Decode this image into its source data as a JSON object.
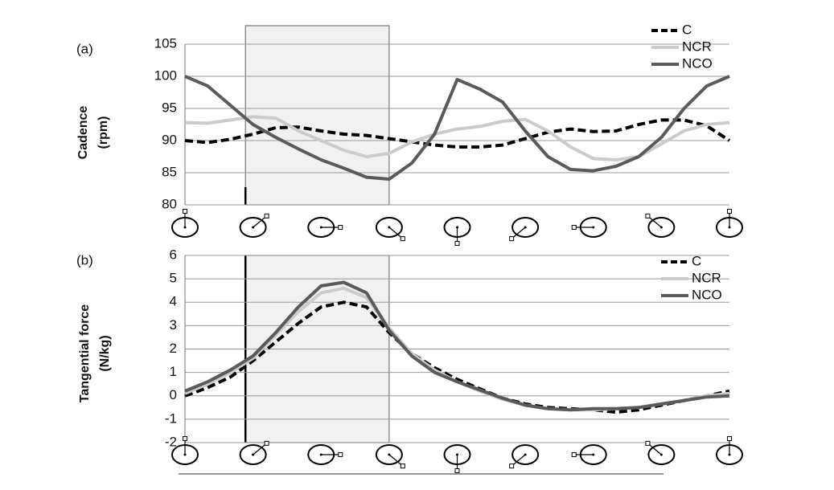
{
  "chart_data": [
    {
      "type": "line",
      "panel_label": "(a)",
      "y_label": [
        "Cadence",
        "(rpm)"
      ],
      "x": [
        0,
        15,
        30,
        45,
        60,
        75,
        90,
        105,
        120,
        135,
        150,
        165,
        180,
        195,
        210,
        225,
        240,
        255,
        270,
        285,
        300,
        315,
        330,
        345,
        360
      ],
      "xlim": [
        0,
        360
      ],
      "ylim": [
        80,
        105
      ],
      "yticks": [
        80,
        85,
        90,
        95,
        100,
        105
      ],
      "grid": true,
      "shaded_region": [
        40,
        135
      ],
      "region_edge": "short",
      "legend": "upper right",
      "series": [
        {
          "name": "C",
          "color": "#000000",
          "dash": true,
          "values": [
            90,
            89.7,
            90.2,
            91,
            92,
            92.1,
            91.5,
            91,
            90.8,
            90.3,
            89.8,
            89.3,
            89,
            89,
            89.3,
            90.3,
            91.3,
            91.8,
            91.4,
            91.5,
            92.5,
            93.2,
            93.2,
            92.3,
            90
          ]
        },
        {
          "name": "NCR",
          "color": "#cbcbcb",
          "dash": false,
          "values": [
            92.8,
            92.7,
            93.2,
            93.7,
            93.5,
            91.5,
            90,
            88.5,
            87.5,
            88,
            89.8,
            91,
            91.8,
            92.2,
            93,
            93.3,
            91.5,
            89,
            87.2,
            87,
            87.5,
            89.5,
            91.5,
            92.5,
            92.8
          ]
        },
        {
          "name": "NCO",
          "color": "#5a5a5a",
          "dash": false,
          "values": [
            100,
            98.5,
            95.5,
            92.5,
            90.5,
            88.7,
            87,
            85.7,
            84.3,
            84,
            86.5,
            91,
            99.5,
            98,
            96,
            91.5,
            87.5,
            85.5,
            85.3,
            86,
            87.5,
            90.5,
            95,
            98.5,
            100
          ]
        }
      ]
    },
    {
      "type": "line",
      "panel_label": "(b)",
      "y_label": [
        "Tangential force",
        "(N/kg)"
      ],
      "x": [
        0,
        15,
        30,
        45,
        60,
        75,
        90,
        105,
        120,
        135,
        150,
        165,
        180,
        195,
        210,
        225,
        240,
        255,
        270,
        285,
        300,
        315,
        330,
        345,
        360
      ],
      "xlim": [
        0,
        360
      ],
      "ylim": [
        -2,
        6
      ],
      "yticks": [
        -2,
        -1,
        0,
        1,
        2,
        3,
        4,
        5,
        6
      ],
      "grid": true,
      "shaded_region": [
        40,
        135
      ],
      "region_edge": "full",
      "legend": "upper right",
      "series": [
        {
          "name": "C",
          "color": "#000000",
          "dash": true,
          "values": [
            0,
            0.35,
            0.8,
            1.5,
            2.3,
            3.1,
            3.8,
            4,
            3.8,
            2.7,
            1.8,
            1.2,
            0.7,
            0.3,
            -0.1,
            -0.35,
            -0.5,
            -0.55,
            -0.6,
            -0.7,
            -0.6,
            -0.4,
            -0.2,
            0,
            0.2
          ]
        },
        {
          "name": "NCR",
          "color": "#cbcbcb",
          "dash": false,
          "values": [
            0.1,
            0.5,
            1,
            1.6,
            2.6,
            3.6,
            4.4,
            4.6,
            4.2,
            2.9,
            1.8,
            1.1,
            0.6,
            0.2,
            -0.15,
            -0.4,
            -0.55,
            -0.6,
            -0.6,
            -0.55,
            -0.5,
            -0.35,
            -0.2,
            0,
            0.1
          ]
        },
        {
          "name": "NCO",
          "color": "#5a5a5a",
          "dash": false,
          "values": [
            0.2,
            0.6,
            1.1,
            1.7,
            2.7,
            3.8,
            4.7,
            4.85,
            4.4,
            2.8,
            1.7,
            1,
            0.6,
            0.25,
            -0.1,
            -0.4,
            -0.55,
            -0.6,
            -0.55,
            -0.55,
            -0.5,
            -0.35,
            -0.2,
            -0.05,
            0
          ]
        }
      ]
    }
  ]
}
